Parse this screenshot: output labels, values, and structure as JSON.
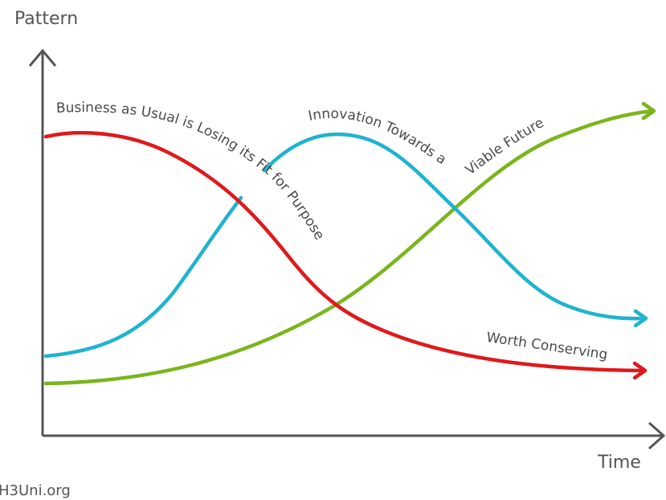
{
  "axes": {
    "y_label": "Pattern",
    "x_label": "Time"
  },
  "curves": {
    "red": {
      "label": "Business as Usual is Losing its Fit for Purpose",
      "end_label": "Worth Conserving",
      "color": "#e0191b"
    },
    "blue": {
      "label": "Innovation Towards a",
      "color": "#1fb3cf"
    },
    "green": {
      "label": "Viable Future",
      "color": "#7ab51d"
    }
  },
  "axis_color": "#555555",
  "footer": "H3Uni.org"
}
